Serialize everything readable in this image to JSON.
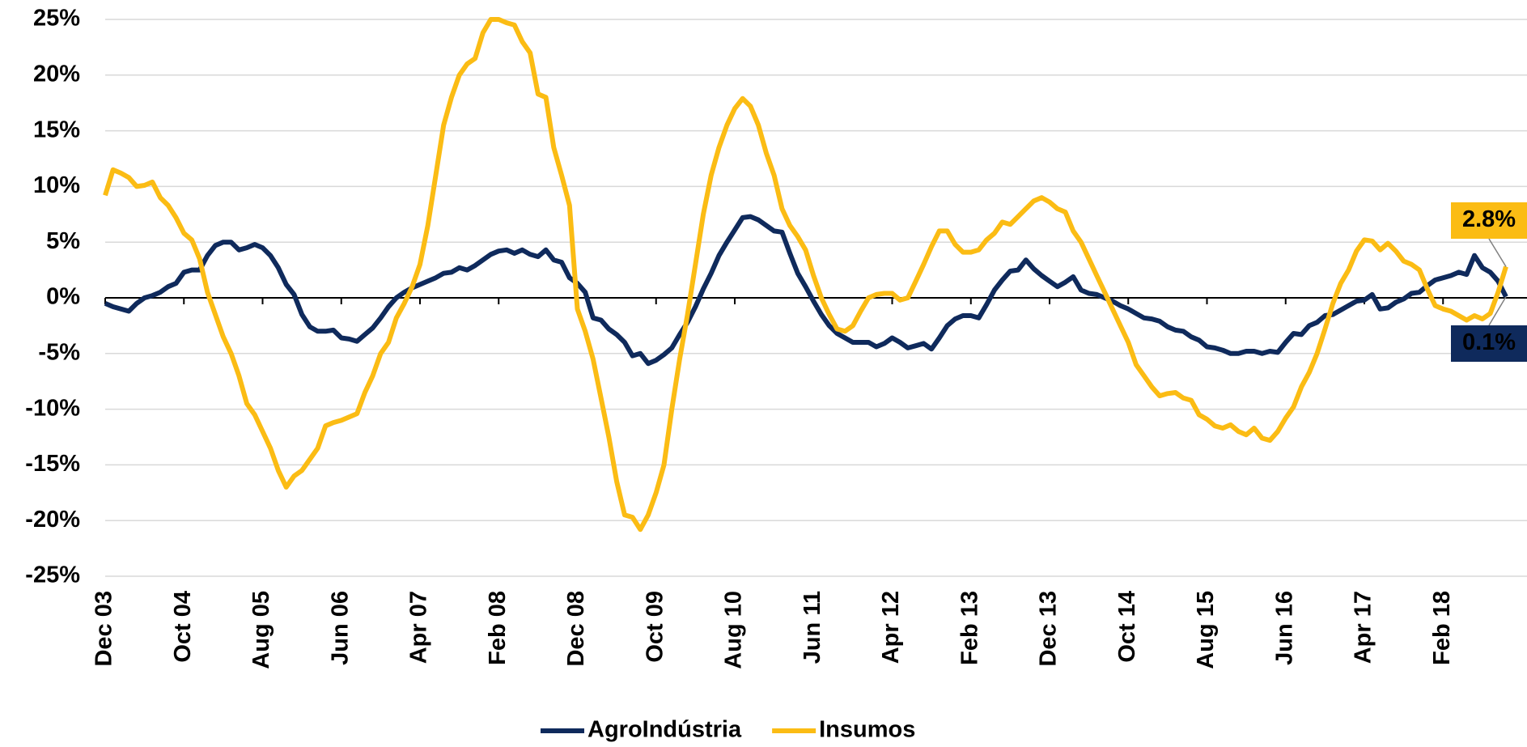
{
  "chart_data": {
    "type": "line",
    "categories": [
      "Dec 03",
      null,
      null,
      null,
      null,
      null,
      null,
      null,
      null,
      null,
      "Oct 04",
      null,
      null,
      null,
      null,
      null,
      null,
      null,
      null,
      null,
      "Aug 05",
      null,
      null,
      null,
      null,
      null,
      null,
      null,
      null,
      null,
      "Jun 06",
      null,
      null,
      null,
      null,
      null,
      null,
      null,
      null,
      null,
      "Apr 07",
      null,
      null,
      null,
      null,
      null,
      null,
      null,
      null,
      null,
      "Feb 08",
      null,
      null,
      null,
      null,
      null,
      null,
      null,
      null,
      null,
      "Dec 08",
      null,
      null,
      null,
      null,
      null,
      null,
      null,
      null,
      null,
      "Oct 09",
      null,
      null,
      null,
      null,
      null,
      null,
      null,
      null,
      null,
      "Aug 10",
      null,
      null,
      null,
      null,
      null,
      null,
      null,
      null,
      null,
      "Jun 11",
      null,
      null,
      null,
      null,
      null,
      null,
      null,
      null,
      null,
      "Apr 12",
      null,
      null,
      null,
      null,
      null,
      null,
      null,
      null,
      null,
      "Feb 13",
      null,
      null,
      null,
      null,
      null,
      null,
      null,
      null,
      null,
      "Dec 13",
      null,
      null,
      null,
      null,
      null,
      null,
      null,
      null,
      null,
      "Oct 14",
      null,
      null,
      null,
      null,
      null,
      null,
      null,
      null,
      null,
      "Aug 15",
      null,
      null,
      null,
      null,
      null,
      null,
      null,
      null,
      null,
      "Jun 16",
      null,
      null,
      null,
      null,
      null,
      null,
      null,
      null,
      null,
      "Apr 17",
      null,
      null,
      null,
      null,
      null,
      null,
      null,
      null,
      null,
      "Feb 18",
      null,
      null,
      null,
      null,
      null,
      null,
      null,
      null
    ],
    "series": [
      {
        "name": "AgroIndústria",
        "color": "#0f2a5c",
        "values": [
          -0.5,
          -0.8,
          -1.0,
          -1.2,
          -0.5,
          0,
          0.2,
          0.5,
          1.0,
          1.3,
          2.3,
          2.5,
          2.5,
          3.8,
          4.7,
          5.0,
          5.0,
          4.3,
          4.5,
          4.8,
          4.5,
          3.8,
          2.7,
          1.2,
          0.3,
          -1.5,
          -2.6,
          -3.0,
          -3.0,
          -2.9,
          -3.6,
          -3.7,
          -3.9,
          -3.3,
          -2.7,
          -1.8,
          -0.8,
          0,
          0.5,
          0.9,
          1.2,
          1.5,
          1.8,
          2.2,
          2.3,
          2.7,
          2.5,
          2.9,
          3.4,
          3.9,
          4.2,
          4.3,
          4.0,
          4.3,
          3.9,
          3.7,
          4.3,
          3.4,
          3.2,
          1.8,
          1.3,
          0.5,
          -1.8,
          -2.0,
          -2.8,
          -3.3,
          -4.0,
          -5.2,
          -5.0,
          -5.9,
          -5.6,
          -5.1,
          -4.5,
          -3.3,
          -2.2,
          -0.8,
          0.8,
          2.2,
          3.8,
          5.0,
          6.1,
          7.2,
          7.3,
          7.0,
          6.5,
          6.0,
          5.9,
          4.0,
          2.2,
          1.0,
          -0.3,
          -1.5,
          -2.5,
          -3.2,
          -3.6,
          -4.0,
          -4.0,
          -4.0,
          -4.4,
          -4.1,
          -3.6,
          -4.0,
          -4.5,
          -4.3,
          -4.1,
          -4.6,
          -3.6,
          -2.5,
          -1.9,
          -1.6,
          -1.6,
          -1.8,
          -0.6,
          0.7,
          1.6,
          2.4,
          2.5,
          3.4,
          2.6,
          2.0,
          1.5,
          1.0,
          1.4,
          1.9,
          0.7,
          0.4,
          0.3,
          0,
          -0.3,
          -0.7,
          -1.0,
          -1.4,
          -1.8,
          -1.9,
          -2.1,
          -2.6,
          -2.9,
          -3.0,
          -3.5,
          -3.8,
          -4.4,
          -4.5,
          -4.7,
          -5.0,
          -5.0,
          -4.8,
          -4.8,
          -5.0,
          -4.8,
          -4.9,
          -4.0,
          -3.2,
          -3.3,
          -2.5,
          -2.2,
          -1.6,
          -1.5,
          -1.1,
          -0.7,
          -0.3,
          -0.2,
          0.3,
          -1.0,
          -0.9,
          -0.4,
          -0.1,
          0.4,
          0.5,
          1.1,
          1.6,
          1.8,
          2.0,
          2.3,
          2.1,
          3.8,
          2.7,
          2.3,
          1.5,
          0.1
        ],
        "value_labels": [
          null,
          null,
          null,
          null,
          null,
          null,
          null,
          null,
          null,
          null,
          null,
          null,
          null,
          null,
          null,
          null,
          null,
          null,
          null,
          null,
          null,
          null,
          null,
          null,
          null,
          null,
          null,
          null,
          null,
          null,
          null,
          null,
          null,
          null,
          null,
          null,
          null,
          null,
          null,
          null,
          null,
          null,
          null,
          null,
          null,
          null,
          null,
          null,
          null,
          null,
          null,
          null,
          null,
          null,
          null,
          null,
          null,
          null,
          null,
          null,
          null,
          null,
          null,
          null,
          null,
          null,
          null,
          null,
          null,
          null,
          null,
          null,
          null,
          null,
          null,
          null,
          null,
          null,
          null,
          null,
          null,
          null,
          null,
          null,
          null,
          null,
          null,
          null,
          null,
          null,
          null,
          null,
          null,
          null,
          null,
          null,
          null,
          null,
          null,
          null,
          null,
          null,
          null,
          null,
          null,
          null,
          null,
          null,
          null,
          null,
          null,
          null,
          null,
          null,
          null,
          null,
          null,
          null,
          null,
          null,
          null,
          null,
          null,
          null,
          null,
          null,
          null,
          null,
          null,
          null,
          null,
          null,
          null,
          null,
          null,
          null,
          null,
          null,
          null,
          null,
          null,
          null,
          null,
          null,
          null,
          null,
          null,
          null,
          null,
          null,
          null,
          null,
          null,
          null,
          null,
          null,
          null,
          null,
          null,
          null,
          null,
          null,
          null,
          null,
          null,
          null,
          null,
          null,
          null,
          null,
          null,
          null,
          null,
          null,
          null,
          null,
          null,
          null,
          "0.1%"
        ]
      },
      {
        "name": "Insumos",
        "color": "#fbbc14",
        "values": [
          9.2,
          11.5,
          11.2,
          10.8,
          10.0,
          10.1,
          10.4,
          9.0,
          8.3,
          7.2,
          5.8,
          5.2,
          3.5,
          0.5,
          -1.5,
          -3.5,
          -5,
          -7,
          -9.5,
          -10.5,
          -12,
          -13.5,
          -15.5,
          -17,
          -16,
          -15.5,
          -14.5,
          -13.5,
          -11.5,
          -11.2,
          -11,
          -10.7,
          -10.4,
          -8.5,
          -7,
          -5,
          -4,
          -1.8,
          -0.5,
          1.0,
          3.0,
          6.5,
          11,
          15.5,
          18,
          20,
          21,
          21.5,
          23.8,
          25,
          25,
          24.7,
          24.5,
          23,
          22,
          18.3,
          18.0,
          13.5,
          11,
          8.3,
          -1,
          -3,
          -5.5,
          -9,
          -12.5,
          -16.5,
          -19.5,
          -19.7,
          -20.8,
          -19.5,
          -17.5,
          -15,
          -10,
          -5.5,
          -1.5,
          3,
          7.5,
          11,
          13.5,
          15.5,
          17,
          17.9,
          17.2,
          15.5,
          13,
          11,
          8,
          6.5,
          5.5,
          4.3,
          2,
          0,
          -1.5,
          -2.8,
          -3,
          -2.5,
          -1.2,
          0,
          0.3,
          0.4,
          0.4,
          -0.2,
          0,
          1.5,
          3,
          4.6,
          6,
          6,
          4.8,
          4.1,
          4.1,
          4.3,
          5.2,
          5.8,
          6.8,
          6.6,
          7.3,
          8,
          8.7,
          9,
          8.6,
          8,
          7.7,
          6,
          5,
          3.5,
          2,
          0.5,
          -1,
          -2.5,
          -4,
          -6,
          -7,
          -8,
          -8.8,
          -8.6,
          -8.5,
          -9,
          -9.2,
          -10.5,
          -10.9,
          -11.5,
          -11.7,
          -11.4,
          -12,
          -12.3,
          -11.7,
          -12.6,
          -12.8,
          -12,
          -10.8,
          -9.8,
          -8,
          -6.7,
          -5,
          -2.8,
          -0.5,
          1.3,
          2.5,
          4.2,
          5.2,
          5.1,
          4.3,
          4.9,
          4.2,
          3.3,
          3.0,
          2.5,
          0.8,
          -0.7,
          -1,
          -1.2,
          -1.6,
          -2,
          -1.6,
          -1.9,
          -1.4,
          0.5,
          2.8
        ],
        "value_labels": [
          null,
          null,
          null,
          null,
          null,
          null,
          null,
          null,
          null,
          null,
          null,
          null,
          null,
          null,
          null,
          null,
          null,
          null,
          null,
          null,
          null,
          null,
          null,
          null,
          null,
          null,
          null,
          null,
          null,
          null,
          null,
          null,
          null,
          null,
          null,
          null,
          null,
          null,
          null,
          null,
          null,
          null,
          null,
          null,
          null,
          null,
          null,
          null,
          null,
          null,
          null,
          null,
          null,
          null,
          null,
          null,
          null,
          null,
          null,
          null,
          null,
          null,
          null,
          null,
          null,
          null,
          null,
          null,
          null,
          null,
          null,
          null,
          null,
          null,
          null,
          null,
          null,
          null,
          null,
          null,
          null,
          null,
          null,
          null,
          null,
          null,
          null,
          null,
          null,
          null,
          null,
          null,
          null,
          null,
          null,
          null,
          null,
          null,
          null,
          null,
          null,
          null,
          null,
          null,
          null,
          null,
          null,
          null,
          null,
          null,
          null,
          null,
          null,
          null,
          null,
          null,
          null,
          null,
          null,
          null,
          null,
          null,
          null,
          null,
          null,
          null,
          null,
          null,
          null,
          null,
          null,
          null,
          null,
          null,
          null,
          null,
          null,
          null,
          null,
          null,
          null,
          null,
          null,
          null,
          null,
          null,
          null,
          null,
          null,
          null,
          null,
          null,
          null,
          null,
          null,
          null,
          null,
          null,
          null,
          null,
          null,
          null,
          null,
          null,
          null,
          null,
          null,
          null,
          null,
          null,
          null,
          null,
          null,
          null,
          null,
          null,
          null,
          null,
          "2.8%"
        ]
      }
    ],
    "ylim": [
      -25,
      25
    ],
    "yticks": [
      {
        "value": -25,
        "label": "-25%"
      },
      {
        "value": -20,
        "label": "-20%"
      },
      {
        "value": -15,
        "label": "-15%"
      },
      {
        "value": -10,
        "label": "-10%"
      },
      {
        "value": -5,
        "label": "-5%"
      },
      {
        "value": 0,
        "label": "0%"
      },
      {
        "value": 5,
        "label": "5%"
      },
      {
        "value": 10,
        "label": "10%"
      },
      {
        "value": 15,
        "label": "15%"
      },
      {
        "value": 20,
        "label": "20%"
      },
      {
        "value": 25,
        "label": "25%"
      }
    ],
    "grid": true,
    "legend": "bottom"
  }
}
